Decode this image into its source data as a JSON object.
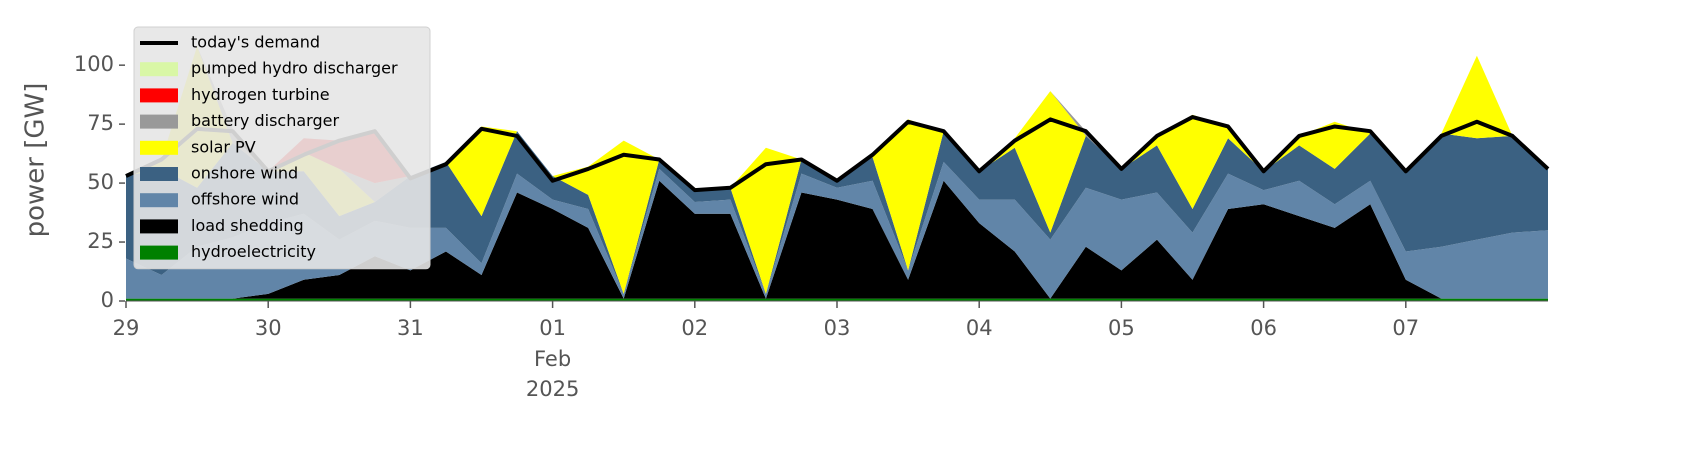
{
  "chart_data": {
    "type": "stacked_area",
    "ylabel": "power [GW]",
    "legend": "upper left",
    "x": [
      0,
      0.25,
      0.5,
      0.75,
      1,
      1.25,
      1.5,
      1.75,
      2,
      2.25,
      2.5,
      2.75,
      3,
      3.25,
      3.5,
      3.75,
      4,
      4.25,
      4.5,
      4.75,
      5,
      5.25,
      5.5,
      5.75,
      6,
      6.25,
      6.5,
      6.75,
      7,
      7.25,
      7.5,
      7.75,
      8,
      8.25,
      8.5,
      8.75,
      9,
      9.25,
      9.5,
      9.75,
      10
    ],
    "xlim": [
      0,
      10
    ],
    "xticks": [
      {
        "value": 0,
        "label": "29"
      },
      {
        "value": 1,
        "label": "30"
      },
      {
        "value": 2,
        "label": "31"
      },
      {
        "value": 3,
        "label": "01"
      },
      {
        "value": 4,
        "label": "02"
      },
      {
        "value": 5,
        "label": "03"
      },
      {
        "value": 6,
        "label": "04"
      },
      {
        "value": 7,
        "label": "05"
      },
      {
        "value": 8,
        "label": "06"
      },
      {
        "value": 9,
        "label": "07"
      }
    ],
    "xtick_extra": [
      "Feb",
      "2025"
    ],
    "ylim": [
      0,
      120
    ],
    "yticks": [
      0,
      25,
      50,
      75,
      100
    ],
    "demand": {
      "name": "today's demand",
      "color": "#000000",
      "values": [
        53,
        60,
        73,
        72,
        55,
        62,
        68,
        72,
        52,
        58,
        73,
        70,
        51,
        56,
        62,
        60,
        47,
        48,
        58,
        60,
        51,
        62,
        76,
        72,
        55,
        68,
        77,
        72,
        56,
        70,
        78,
        74,
        55,
        70,
        74,
        72,
        55,
        70,
        76,
        70,
        56
      ]
    },
    "series": [
      {
        "name": "pumped hydro discharger",
        "color": "#d9f7a6",
        "values": [
          0,
          0,
          0,
          0,
          0,
          0,
          0,
          0,
          0,
          0,
          0,
          0,
          0,
          0,
          0,
          0,
          0,
          0,
          0,
          0,
          0,
          0,
          0,
          0,
          0,
          0,
          0,
          0,
          0,
          0,
          0,
          0,
          0,
          0,
          0,
          0,
          0,
          0,
          0,
          0,
          0
        ]
      },
      {
        "name": "hydrogen turbine",
        "color": "#ff0000",
        "values": [
          0,
          0,
          0,
          0,
          0,
          6,
          12,
          22,
          0,
          0,
          0,
          0,
          0,
          0,
          0,
          0,
          0,
          0,
          0,
          0,
          0,
          0,
          0,
          0,
          0,
          0,
          0,
          0,
          0,
          0,
          0,
          0,
          0,
          0,
          0,
          0,
          0,
          0,
          0,
          0,
          0
        ]
      },
      {
        "name": "battery discharger",
        "color": "#999999",
        "values": [
          0,
          0,
          0,
          6,
          0,
          0,
          0,
          8,
          0,
          0,
          0,
          0,
          0,
          0,
          0,
          0,
          0,
          0,
          0,
          0,
          0,
          0,
          0,
          0,
          0,
          0,
          0,
          2,
          0,
          0,
          0,
          0,
          0,
          0,
          0,
          0,
          0,
          0,
          0,
          0,
          0
        ]
      },
      {
        "name": "solar PV",
        "color": "#ffff00",
        "values": [
          0,
          4,
          60,
          0,
          0,
          8,
          20,
          0,
          0,
          0,
          38,
          0,
          0,
          12,
          65,
          0,
          0,
          0,
          62,
          0,
          0,
          1,
          64,
          0,
          0,
          4,
          60,
          0,
          0,
          4,
          40,
          5,
          0,
          4,
          20,
          0,
          0,
          0,
          35,
          0,
          0
        ]
      },
      {
        "name": "onshore wind",
        "color": "#3b6182",
        "values": [
          35,
          45,
          25,
          40,
          22,
          18,
          10,
          8,
          22,
          28,
          20,
          18,
          10,
          6,
          0,
          4,
          5,
          5,
          0,
          6,
          3,
          10,
          0,
          13,
          12,
          22,
          3,
          22,
          13,
          20,
          10,
          15,
          8,
          15,
          15,
          20,
          35,
          48,
          43,
          41,
          26
        ]
      },
      {
        "name": "offshore wind",
        "color": "#6185a8",
        "values": [
          17,
          10,
          22,
          26,
          30,
          28,
          15,
          15,
          18,
          10,
          5,
          8,
          4,
          8,
          2,
          5,
          5,
          6,
          2,
          8,
          5,
          12,
          4,
          8,
          10,
          22,
          25,
          25,
          30,
          20,
          20,
          15,
          6,
          15,
          10,
          10,
          12,
          22,
          25,
          28,
          29
        ]
      },
      {
        "name": "load shedding",
        "color": "#000000",
        "values": [
          0,
          0,
          0,
          0,
          2,
          8,
          10,
          18,
          12,
          20,
          10,
          45,
          38,
          30,
          0,
          50,
          36,
          36,
          0,
          45,
          42,
          38,
          8,
          50,
          32,
          20,
          0,
          22,
          12,
          25,
          8,
          38,
          40,
          35,
          30,
          40,
          8,
          0,
          0,
          0,
          0
        ]
      },
      {
        "name": "hydroelectricity",
        "color": "#008000",
        "values": [
          1,
          1,
          1,
          1,
          1,
          1,
          1,
          1,
          1,
          1,
          1,
          1,
          1,
          1,
          1,
          1,
          1,
          1,
          1,
          1,
          1,
          1,
          1,
          1,
          1,
          1,
          1,
          1,
          1,
          1,
          1,
          1,
          1,
          1,
          1,
          1,
          1,
          1,
          1,
          1,
          1
        ]
      }
    ]
  }
}
